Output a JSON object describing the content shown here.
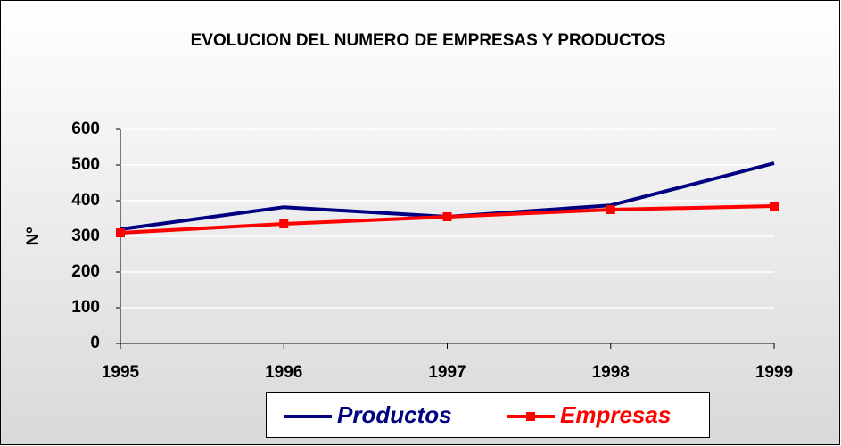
{
  "chart_data": {
    "type": "line",
    "title": "EVOLUCION DEL NUMERO DE EMPRESAS Y PRODUCTOS",
    "y_label": "Nº",
    "x": [
      1995,
      1996,
      1997,
      1998,
      1999
    ],
    "xlim": [
      1995,
      1999
    ],
    "xticks": [
      1995,
      1996,
      1997,
      1998,
      1999
    ],
    "ylim": [
      0,
      600
    ],
    "yticks": [
      0,
      100,
      200,
      300,
      400,
      500,
      600
    ],
    "grid": true,
    "legend": "bottom",
    "series": [
      {
        "name": "Productos",
        "color": "#000080",
        "values": [
          320,
          382,
          355,
          387,
          505
        ]
      },
      {
        "name": "Empresas",
        "color": "#ff0000",
        "values": [
          310,
          335,
          355,
          375,
          385
        ]
      }
    ]
  }
}
